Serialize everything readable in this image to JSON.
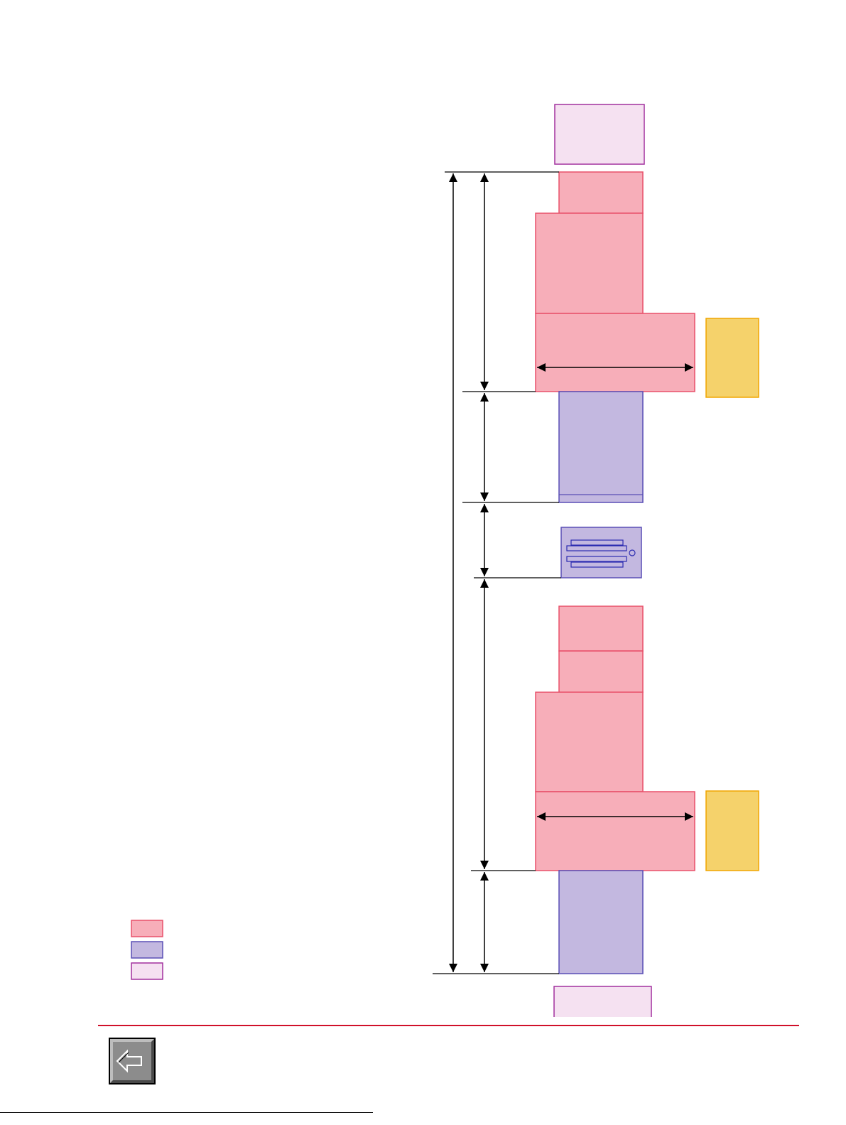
{
  "colors": {
    "pink_fill": "#F7AEB9",
    "pink_stroke": "#E8506A",
    "purple_fill": "#C3B8E0",
    "purple_stroke": "#5A4FB5",
    "lavender_fill": "#F5E1F1",
    "lavender_stroke": "#A2309E",
    "yellow_fill": "#F5D26B",
    "yellow_stroke": "#F0A500",
    "footer_rule": "#D0102A",
    "nav_button": "#8C8C8C"
  },
  "legend": [
    {
      "swatch": "pink"
    },
    {
      "swatch": "purple"
    },
    {
      "swatch": "lavender"
    }
  ],
  "icons": {
    "drive": "drive-bay-icon",
    "back": "back-arrow-icon"
  }
}
